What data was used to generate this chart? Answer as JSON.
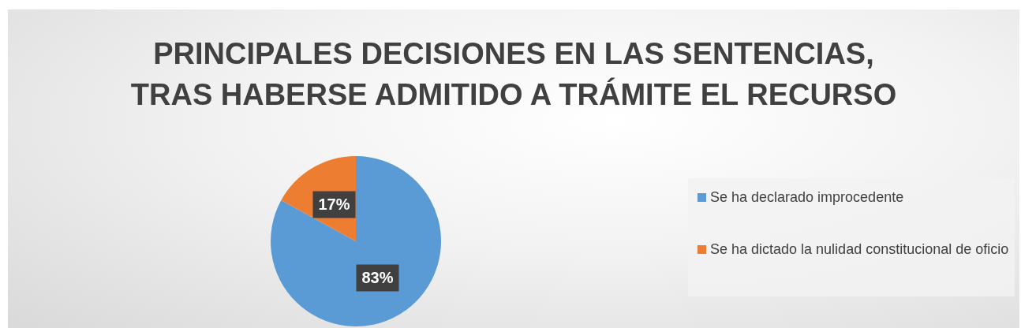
{
  "chart_data": {
    "type": "pie",
    "title": "PRINCIPALES DECISIONES EN LAS SENTENCIAS,\nTRAS HABERSE ADMITIDO A TRÁMITE EL RECURSO",
    "categories": [
      "Se ha declarado improcedente",
      "Se ha dictado la nulidad constitucional de oficio"
    ],
    "values": [
      83,
      17
    ],
    "colors": [
      "#5b9bd5",
      "#ed7d31"
    ],
    "value_labels": [
      "83%",
      "17%"
    ],
    "legend": "right"
  }
}
